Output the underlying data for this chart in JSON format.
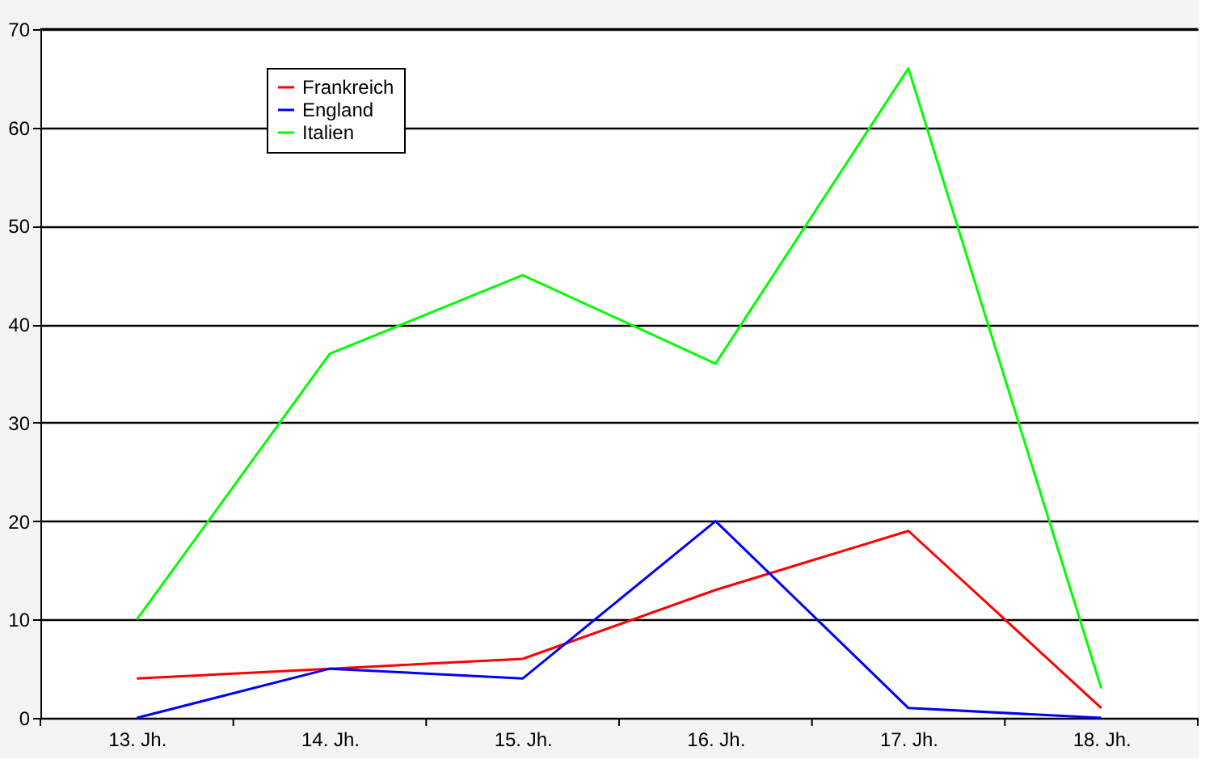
{
  "chart_data": {
    "type": "line",
    "categories": [
      "13. Jh.",
      "14. Jh.",
      "15. Jh.",
      "16. Jh.",
      "17. Jh.",
      "18. Jh."
    ],
    "series": [
      {
        "name": "Frankreich",
        "color": "#ff0000",
        "values": [
          4,
          5,
          6,
          13,
          19,
          1
        ]
      },
      {
        "name": "England",
        "color": "#0000ff",
        "values": [
          0,
          5,
          4,
          20,
          1,
          0
        ]
      },
      {
        "name": "Italien",
        "color": "#00ff00",
        "values": [
          10,
          37,
          45,
          36,
          66,
          3
        ]
      }
    ],
    "ylim": [
      0,
      70
    ],
    "yticks": [
      0,
      10,
      20,
      30,
      40,
      50,
      60,
      70
    ],
    "grid": "y",
    "legend": "top left",
    "marker": "none",
    "line_style": "solid"
  }
}
